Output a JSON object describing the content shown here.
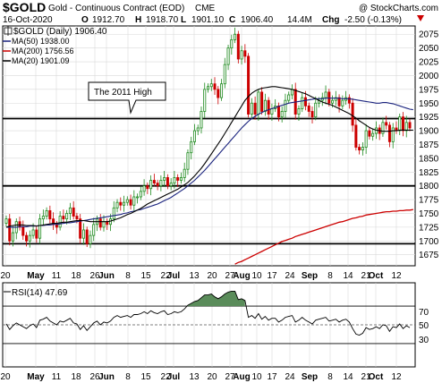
{
  "header": {
    "symbol": "$GOLD",
    "name": "Gold - Continuous Contract (EOD)",
    "exchange": "CME",
    "watermark": "@ StockCharts.com",
    "date": "16-Oct-2020",
    "o_label": "O",
    "o_value": "1912.70",
    "h_label": "H",
    "h_value": "1918.70",
    "l_label": "L",
    "l_value": "1901.10",
    "c_label": "C",
    "c_value": "1906.40",
    "volume": "14.4M",
    "chg_label": "Chg",
    "chg_value": "-2.50 (-0.13%)"
  },
  "legend": [
    {
      "label": "$GOLD (Daily) 1906.40",
      "color": "#000000",
      "kind": "candle"
    },
    {
      "label": "MA(50) 1938.00",
      "color": "#1a237e",
      "kind": "line"
    },
    {
      "label": "MA(200) 1756.56",
      "color": "#cc0000",
      "kind": "line"
    },
    {
      "label": "MA(20) 1901.09",
      "color": "#000000",
      "kind": "line"
    }
  ],
  "annotation": "The 2011 High",
  "rsi": {
    "label": "RSI(14) 47.69",
    "levels": [
      70,
      50,
      30
    ],
    "ticks": [
      "70",
      "50",
      "30"
    ]
  },
  "x_tick_labels": [
    "20",
    "May",
    "11",
    "18",
    "26",
    "Jun",
    "8",
    "15",
    "22",
    "Jul",
    "13",
    "20",
    "27",
    "Aug",
    "10",
    "17",
    "24",
    "Sep",
    "8",
    "14",
    "21",
    "Oct",
    "12"
  ],
  "colors": {
    "up": "#1d8a1d",
    "down": "#cc0000",
    "ma50": "#1a237e",
    "ma200": "#cc0000",
    "ma20": "#000000",
    "rsi_fill": "#5a8c5a"
  },
  "chart_data": {
    "type": "candlestick",
    "y_ticks": [
      1675,
      1700,
      1725,
      1750,
      1775,
      1800,
      1825,
      1850,
      1875,
      1900,
      1925,
      1950,
      1975,
      2000,
      2025,
      2050,
      2075
    ],
    "ylim": [
      1655,
      2090
    ],
    "horizontal_lines": [
      1922,
      1800,
      1695
    ],
    "x_labels": [
      "20",
      "May",
      "11",
      "18",
      "26",
      "Jun",
      "8",
      "15",
      "22",
      "Jul",
      "13",
      "20",
      "27",
      "Aug",
      "10",
      "17",
      "24",
      "Sep",
      "8",
      "14",
      "21",
      "Oct",
      "12"
    ],
    "closes": [
      1740,
      1700,
      1715,
      1735,
      1725,
      1710,
      1700,
      1710,
      1720,
      1705,
      1740,
      1745,
      1755,
      1740,
      1730,
      1725,
      1745,
      1740,
      1750,
      1760,
      1745,
      1740,
      1705,
      1720,
      1695,
      1710,
      1730,
      1740,
      1725,
      1735,
      1730,
      1740,
      1760,
      1770,
      1765,
      1770,
      1775,
      1765,
      1780,
      1780,
      1790,
      1800,
      1795,
      1810,
      1805,
      1800,
      1810,
      1815,
      1800,
      1805,
      1815,
      1810,
      1815,
      1830,
      1860,
      1880,
      1900,
      1905,
      1935,
      1975,
      1980,
      1985,
      1975,
      1960,
      1985,
      2020,
      2050,
      2065,
      2075,
      2030,
      2045,
      2035,
      1930,
      1950,
      1930,
      1970,
      1935,
      1955,
      1930,
      1940,
      1945,
      1925,
      1935,
      1955,
      1965,
      1975,
      1930,
      1940,
      1960,
      1945,
      1935,
      1925,
      1950,
      1955,
      1960,
      1970,
      1950,
      1955,
      1960,
      1945,
      1955,
      1960,
      1950,
      1910,
      1870,
      1865,
      1870,
      1900,
      1890,
      1895,
      1905,
      1895,
      1915,
      1910,
      1880,
      1905,
      1900,
      1925,
      1900,
      1915,
      1905
    ],
    "ma50": [
      1725,
      1725,
      1725,
      1725,
      1726,
      1726,
      1726,
      1727,
      1727,
      1727,
      1728,
      1728,
      1729,
      1729,
      1730,
      1730,
      1731,
      1732,
      1733,
      1733,
      1734,
      1735,
      1736,
      1737,
      1738,
      1739,
      1740,
      1741,
      1742,
      1743,
      1744,
      1745,
      1746,
      1747,
      1748,
      1750,
      1751,
      1753,
      1754,
      1756,
      1757,
      1759,
      1761,
      1763,
      1765,
      1767,
      1770,
      1773,
      1776,
      1779,
      1783,
      1787,
      1791,
      1795,
      1800,
      1805,
      1810,
      1816,
      1822,
      1828,
      1835,
      1842,
      1849,
      1856,
      1863,
      1870,
      1877,
      1884,
      1891,
      1898,
      1905,
      1911,
      1917,
      1922,
      1926,
      1930,
      1933,
      1936,
      1938,
      1940,
      1942,
      1944,
      1946,
      1948,
      1950,
      1951,
      1952,
      1953,
      1954,
      1955,
      1956,
      1957,
      1958,
      1958,
      1958,
      1959,
      1959,
      1959,
      1959,
      1959,
      1958,
      1958,
      1958,
      1957,
      1956,
      1955,
      1954,
      1953,
      1952,
      1951,
      1950,
      1950,
      1951,
      1951,
      1950,
      1949,
      1947,
      1945,
      1943,
      1941,
      1939,
      1938
    ],
    "ma200": [
      null,
      null,
      null,
      null,
      null,
      null,
      null,
      null,
      null,
      null,
      null,
      null,
      null,
      null,
      null,
      null,
      null,
      null,
      null,
      null,
      null,
      null,
      null,
      null,
      null,
      null,
      null,
      null,
      null,
      null,
      null,
      null,
      null,
      null,
      null,
      null,
      null,
      null,
      null,
      null,
      null,
      null,
      null,
      null,
      null,
      null,
      null,
      null,
      null,
      null,
      null,
      null,
      null,
      null,
      null,
      null,
      null,
      null,
      null,
      null,
      null,
      null,
      null,
      null,
      null,
      null,
      null,
      null,
      1658,
      1661,
      1663,
      1666,
      1669,
      1672,
      1675,
      1678,
      1681,
      1684,
      1687,
      1690,
      1693,
      1696,
      1699,
      1701,
      1703,
      1705,
      1708,
      1710,
      1712,
      1714,
      1716,
      1718,
      1720,
      1722,
      1724,
      1726,
      1728,
      1730,
      1732,
      1734,
      1735,
      1737,
      1739,
      1741,
      1742,
      1744,
      1745,
      1747,
      1748,
      1749,
      1750,
      1751,
      1752,
      1753,
      1753,
      1754,
      1754,
      1755,
      1755,
      1756,
      1756,
      1757
    ],
    "ma20": [
      1725,
      1727,
      1728,
      1729,
      1729,
      1729,
      1728,
      1728,
      1728,
      1727,
      1728,
      1729,
      1730,
      1731,
      1732,
      1732,
      1733,
      1734,
      1734,
      1735,
      1736,
      1737,
      1737,
      1737,
      1736,
      1735,
      1735,
      1735,
      1735,
      1735,
      1735,
      1736,
      1738,
      1740,
      1742,
      1745,
      1748,
      1750,
      1753,
      1756,
      1759,
      1763,
      1767,
      1770,
      1773,
      1776,
      1779,
      1782,
      1785,
      1788,
      1791,
      1794,
      1798,
      1802,
      1806,
      1812,
      1818,
      1825,
      1832,
      1840,
      1849,
      1858,
      1867,
      1876,
      1885,
      1895,
      1905,
      1915,
      1925,
      1935,
      1945,
      1955,
      1962,
      1968,
      1972,
      1975,
      1977,
      1978,
      1979,
      1980,
      1980,
      1979,
      1978,
      1977,
      1976,
      1975,
      1973,
      1971,
      1969,
      1967,
      1964,
      1961,
      1958,
      1955,
      1952,
      1950,
      1948,
      1946,
      1943,
      1940,
      1937,
      1934,
      1931,
      1927,
      1923,
      1918,
      1914,
      1910,
      1906,
      1903,
      1901,
      1900,
      1899,
      1899,
      1899,
      1900,
      1900,
      1901,
      1901,
      1901,
      1901,
      1901
    ],
    "rsi": [
      51,
      45,
      49,
      52,
      50,
      48,
      46,
      49,
      51,
      47,
      55,
      56,
      58,
      54,
      52,
      50,
      54,
      53,
      55,
      57,
      52,
      51,
      45,
      49,
      44,
      48,
      52,
      54,
      50,
      53,
      52,
      54,
      58,
      60,
      58,
      59,
      60,
      58,
      61,
      61,
      62,
      64,
      62,
      65,
      63,
      62,
      64,
      65,
      61,
      62,
      64,
      63,
      64,
      67,
      71,
      73,
      75,
      76,
      79,
      82,
      82,
      83,
      80,
      78,
      80,
      83,
      85,
      86,
      86,
      77,
      78,
      76,
      58,
      60,
      57,
      62,
      56,
      59,
      55,
      57,
      57,
      53,
      55,
      58,
      59,
      60,
      53,
      55,
      58,
      55,
      53,
      51,
      55,
      56,
      57,
      58,
      54,
      55,
      56,
      53,
      55,
      56,
      53,
      46,
      40,
      39,
      41,
      47,
      45,
      46,
      48,
      46,
      50,
      49,
      43,
      48,
      47,
      51,
      46,
      49,
      47
    ]
  }
}
